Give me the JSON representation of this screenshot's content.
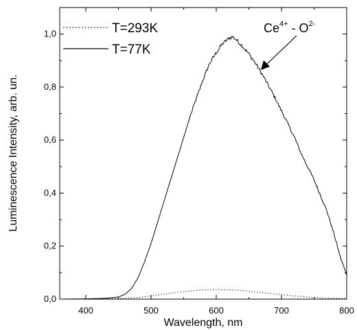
{
  "chart_data": {
    "type": "line",
    "xlabel": "Wavelength, nm",
    "ylabel": "Luminescence Intensity, arb. un.",
    "xlim": [
      360,
      800
    ],
    "ylim": [
      0,
      1.1
    ],
    "x_ticks": [
      400,
      500,
      600,
      700,
      800
    ],
    "y_ticks": [
      0.0,
      0.2,
      0.4,
      0.6,
      0.8,
      1.0
    ],
    "y_tick_labels": [
      "0,0",
      "0,2",
      "0,4",
      "0,6",
      "0,8",
      "1,0"
    ],
    "legend": [
      {
        "name": "T=293K",
        "style": "dotted"
      },
      {
        "name": "T=77K",
        "style": "solid"
      }
    ],
    "legend_position": "top-left",
    "annotation": {
      "base1": "Ce",
      "sup1": "4+",
      "mid": " - O",
      "sup2": "2-",
      "arrow_to": {
        "x": 668,
        "y": 0.88
      }
    },
    "series": [
      {
        "name": "T=77K",
        "style": "solid",
        "x": [
          360,
          400,
          430,
          450,
          460,
          470,
          480,
          490,
          500,
          510,
          520,
          530,
          540,
          550,
          560,
          570,
          580,
          590,
          600,
          610,
          620,
          625,
          630,
          640,
          650,
          660,
          670,
          680,
          690,
          700,
          710,
          720,
          730,
          740,
          750,
          760,
          770,
          780,
          790,
          800
        ],
        "values": [
          0.0,
          0.001,
          0.003,
          0.008,
          0.018,
          0.04,
          0.08,
          0.14,
          0.21,
          0.29,
          0.37,
          0.45,
          0.53,
          0.61,
          0.69,
          0.76,
          0.83,
          0.89,
          0.93,
          0.965,
          0.985,
          0.99,
          0.98,
          0.955,
          0.925,
          0.89,
          0.85,
          0.805,
          0.76,
          0.71,
          0.66,
          0.61,
          0.55,
          0.5,
          0.45,
          0.39,
          0.33,
          0.25,
          0.16,
          0.09
        ]
      },
      {
        "name": "T=293K",
        "style": "dotted",
        "x": [
          360,
          420,
          450,
          480,
          500,
          520,
          540,
          560,
          580,
          600,
          620,
          640,
          660,
          680,
          700,
          720,
          740,
          760,
          780,
          800
        ],
        "values": [
          0.0,
          0.0,
          0.002,
          0.006,
          0.012,
          0.019,
          0.026,
          0.031,
          0.035,
          0.036,
          0.035,
          0.032,
          0.027,
          0.022,
          0.017,
          0.012,
          0.008,
          0.005,
          0.003,
          0.002
        ]
      }
    ]
  }
}
